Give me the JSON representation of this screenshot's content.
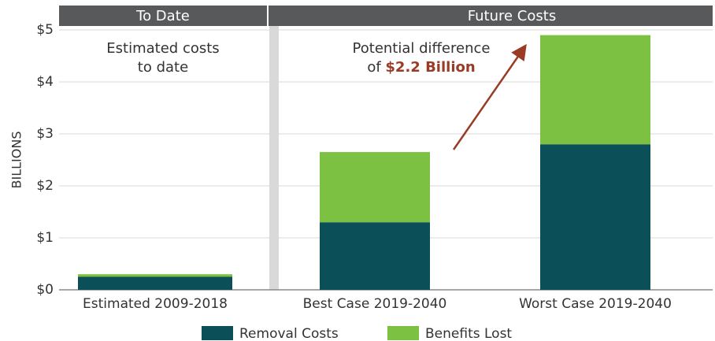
{
  "chart_data": {
    "type": "stacked_bar",
    "section_labels": [
      "To Date",
      "Future Costs"
    ],
    "annotations": [
      "Estimated costs",
      "to date",
      "Potential difference",
      "of",
      "$2.2 Billion"
    ],
    "y_label": "BILLIONS",
    "categories": [
      "Estimated 2009-2018",
      "Best Case 2019-2040",
      "Worst Case 2019-2040"
    ],
    "series": [
      {
        "name": "Removal Costs",
        "color": "#0b5058",
        "values": [
          0.25,
          1.3,
          2.8
        ]
      },
      {
        "name": "Benefits Lost",
        "color": "#7dc142",
        "values": [
          0.05,
          1.35,
          2.1
        ]
      }
    ],
    "ylim": [
      0,
      5
    ],
    "yticks": [
      {
        "value": 0,
        "label": "$0"
      },
      {
        "value": 1,
        "label": "$1"
      },
      {
        "value": 2,
        "label": "$2"
      },
      {
        "value": 3,
        "label": "$3"
      },
      {
        "value": 4,
        "label": "$4"
      },
      {
        "value": 5,
        "label": "$5"
      }
    ],
    "grid": true
  }
}
